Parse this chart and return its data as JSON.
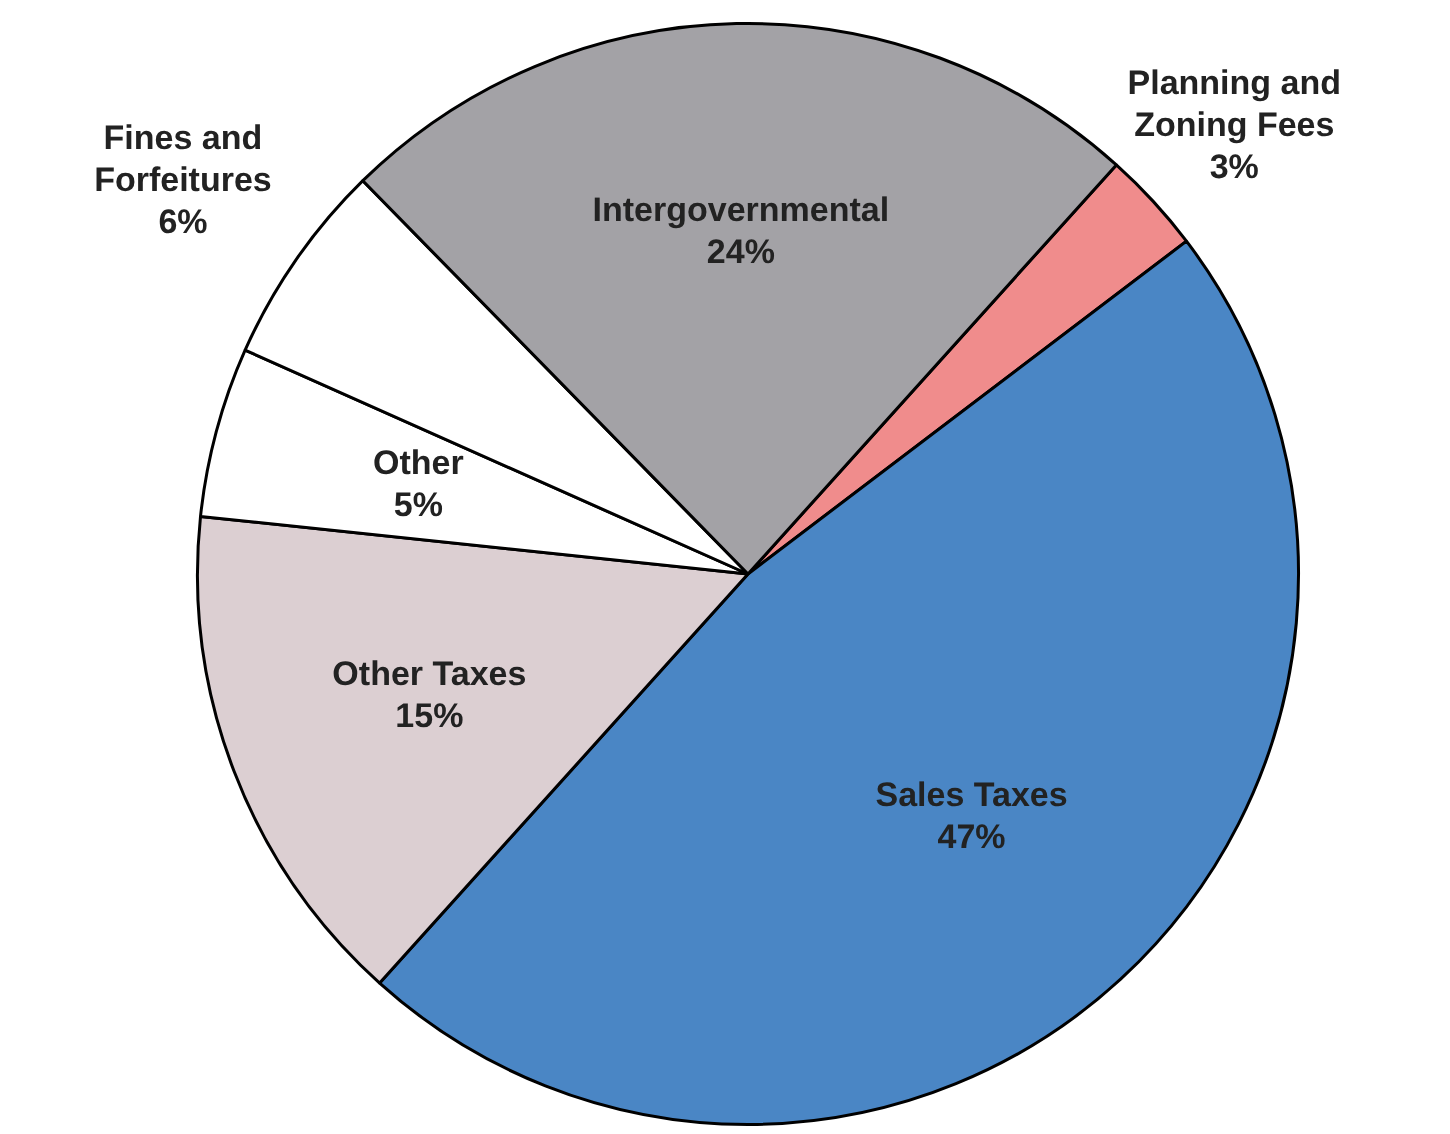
{
  "chart_data": {
    "type": "pie",
    "categories": [
      "Planning and Zoning Fees",
      "Sales Taxes",
      "Other Taxes",
      "Other",
      "Fines and Forfeitures",
      "Intergovernmental"
    ],
    "values": [
      3,
      47,
      15,
      5,
      6,
      24
    ],
    "value_labels": [
      "3%",
      "47%",
      "15%",
      "5%",
      "6%",
      "24%"
    ],
    "colors": [
      "#f08c8c",
      "#4a86c5",
      "#dccfd2",
      "#ffffff",
      "#ffffff",
      "#a3a2a6"
    ],
    "legend": false
  }
}
